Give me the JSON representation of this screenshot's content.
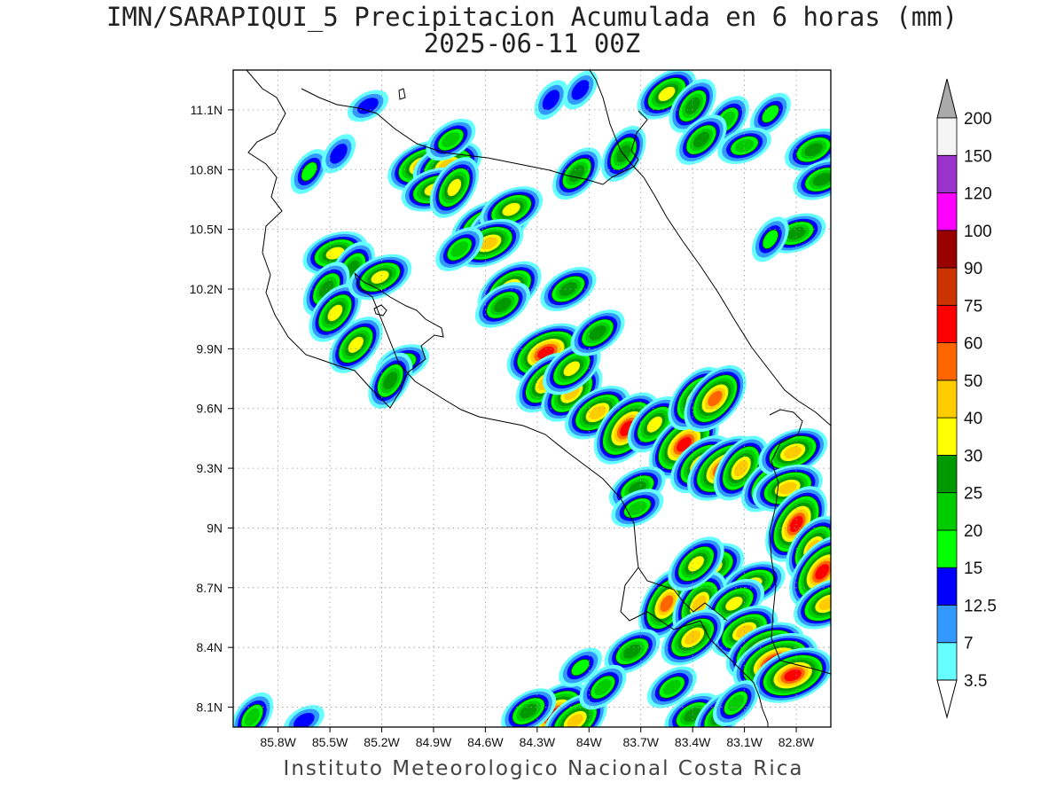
{
  "title": {
    "line1": "IMN/SARAPIQUI_5 Precipitacion Acumulada en 6 horas (mm)",
    "line2": "2025-06-11 00Z"
  },
  "credit": "Instituto Meteorologico Nacional Costa Rica",
  "map": {
    "lon_range": [
      -86.06,
      -82.6
    ],
    "lat_range": [
      8.0,
      11.3
    ],
    "lat_ticks": [
      "11.1N",
      "10.8N",
      "10.5N",
      "10.2N",
      "9.9N",
      "9.6N",
      "9.3N",
      "9N",
      "8.7N",
      "8.4N",
      "8.1N"
    ],
    "lon_ticks": [
      "85.8W",
      "85.5W",
      "85.2W",
      "84.9W",
      "84.6W",
      "84.3W",
      "84W",
      "83.7W",
      "83.4W",
      "83.1W",
      "82.8W"
    ],
    "grid": true
  },
  "colorbar": {
    "levels": [
      "3.5",
      "7",
      "12.5",
      "15",
      "20",
      "25",
      "30",
      "40",
      "50",
      "60",
      "75",
      "90",
      "100",
      "120",
      "150",
      "200"
    ],
    "colors": [
      "#66ffff",
      "#3399ff",
      "#0000ff",
      "#00ff00",
      "#00cc00",
      "#009900",
      "#ffff00",
      "#ffcc00",
      "#ff6600",
      "#ff0000",
      "#cc3300",
      "#990000",
      "#ff00ff",
      "#9933cc",
      "#f5f5f5",
      "#aaaaaa"
    ],
    "arrow_top_color": "#aaaaaa",
    "arrow_bottom_color": "#ffffff"
  },
  "rain_cells": [
    {
      "lon": -85.47,
      "lat": 10.38,
      "mm": 30
    },
    {
      "lon": -85.37,
      "lat": 10.3,
      "mm": 25
    },
    {
      "lon": -85.52,
      "lat": 10.2,
      "mm": 25
    },
    {
      "lon": -85.47,
      "lat": 10.08,
      "mm": 30
    },
    {
      "lon": -85.35,
      "lat": 9.92,
      "mm": 30
    },
    {
      "lon": -85.21,
      "lat": 10.26,
      "mm": 30
    },
    {
      "lon": -85.08,
      "lat": 9.83,
      "mm": 20
    },
    {
      "lon": -85.15,
      "lat": 9.74,
      "mm": 25
    },
    {
      "lon": -85.62,
      "lat": 10.79,
      "mm": 15
    },
    {
      "lon": -85.45,
      "lat": 10.88,
      "mm": 12.5
    },
    {
      "lon": -85.28,
      "lat": 11.12,
      "mm": 12.5
    },
    {
      "lon": -84.97,
      "lat": 10.82,
      "mm": 40
    },
    {
      "lon": -84.82,
      "lat": 10.82,
      "mm": 40
    },
    {
      "lon": -84.9,
      "lat": 10.7,
      "mm": 30
    },
    {
      "lon": -84.78,
      "lat": 10.71,
      "mm": 30
    },
    {
      "lon": -84.8,
      "lat": 10.95,
      "mm": 20
    },
    {
      "lon": -84.62,
      "lat": 10.52,
      "mm": 30
    },
    {
      "lon": -84.52,
      "lat": 10.52,
      "mm": 30
    },
    {
      "lon": -84.45,
      "lat": 10.6,
      "mm": 30
    },
    {
      "lon": -84.58,
      "lat": 10.43,
      "mm": 40
    },
    {
      "lon": -84.75,
      "lat": 10.4,
      "mm": 20
    },
    {
      "lon": -84.46,
      "lat": 10.2,
      "mm": 40
    },
    {
      "lon": -84.5,
      "lat": 10.12,
      "mm": 25
    },
    {
      "lon": -84.12,
      "lat": 10.2,
      "mm": 25
    },
    {
      "lon": -84.25,
      "lat": 9.88,
      "mm": 60
    },
    {
      "lon": -84.25,
      "lat": 9.73,
      "mm": 40
    },
    {
      "lon": -84.1,
      "lat": 9.68,
      "mm": 40
    },
    {
      "lon": -84.1,
      "lat": 9.8,
      "mm": 30
    },
    {
      "lon": -83.95,
      "lat": 9.98,
      "mm": 25
    },
    {
      "lon": -83.95,
      "lat": 9.58,
      "mm": 40
    },
    {
      "lon": -83.78,
      "lat": 9.5,
      "mm": 60
    },
    {
      "lon": -83.62,
      "lat": 9.52,
      "mm": 30
    },
    {
      "lon": -83.45,
      "lat": 9.42,
      "mm": 60
    },
    {
      "lon": -83.35,
      "lat": 9.32,
      "mm": 40
    },
    {
      "lon": -83.22,
      "lat": 9.3,
      "mm": 60
    },
    {
      "lon": -83.12,
      "lat": 9.3,
      "mm": 40
    },
    {
      "lon": -83.38,
      "lat": 9.65,
      "mm": 40
    },
    {
      "lon": -83.27,
      "lat": 9.65,
      "mm": 50
    },
    {
      "lon": -82.96,
      "lat": 9.22,
      "mm": 30
    },
    {
      "lon": -82.82,
      "lat": 9.38,
      "mm": 40
    },
    {
      "lon": -82.85,
      "lat": 9.2,
      "mm": 40
    },
    {
      "lon": -82.8,
      "lat": 9.02,
      "mm": 60
    },
    {
      "lon": -82.7,
      "lat": 8.9,
      "mm": 40
    },
    {
      "lon": -82.65,
      "lat": 8.78,
      "mm": 60
    },
    {
      "lon": -82.62,
      "lat": 8.62,
      "mm": 40
    },
    {
      "lon": -83.3,
      "lat": 8.8,
      "mm": 40
    },
    {
      "lon": -83.05,
      "lat": 8.72,
      "mm": 30
    },
    {
      "lon": -83.55,
      "lat": 8.62,
      "mm": 50
    },
    {
      "lon": -83.36,
      "lat": 8.62,
      "mm": 40
    },
    {
      "lon": -83.16,
      "lat": 8.62,
      "mm": 30
    },
    {
      "lon": -83.1,
      "lat": 8.48,
      "mm": 40
    },
    {
      "lon": -82.98,
      "lat": 8.38,
      "mm": 60
    },
    {
      "lon": -82.92,
      "lat": 8.32,
      "mm": 75
    },
    {
      "lon": -82.82,
      "lat": 8.26,
      "mm": 60
    },
    {
      "lon": -83.4,
      "lat": 8.45,
      "mm": 40
    },
    {
      "lon": -83.52,
      "lat": 8.2,
      "mm": 20
    },
    {
      "lon": -83.75,
      "lat": 8.38,
      "mm": 25
    },
    {
      "lon": -83.72,
      "lat": 9.2,
      "mm": 25
    },
    {
      "lon": -83.72,
      "lat": 9.1,
      "mm": 20
    },
    {
      "lon": -83.38,
      "lat": 8.82,
      "mm": 30
    },
    {
      "lon": -84.2,
      "lat": 8.06,
      "mm": 60
    },
    {
      "lon": -84.08,
      "lat": 8.03,
      "mm": 40
    },
    {
      "lon": -84.35,
      "lat": 8.08,
      "mm": 25
    },
    {
      "lon": -83.4,
      "lat": 8.06,
      "mm": 25
    },
    {
      "lon": -83.25,
      "lat": 8.05,
      "mm": 25
    },
    {
      "lon": -83.15,
      "lat": 8.12,
      "mm": 20
    },
    {
      "lon": -83.92,
      "lat": 8.2,
      "mm": 20
    },
    {
      "lon": -84.05,
      "lat": 8.3,
      "mm": 15
    },
    {
      "lon": -83.55,
      "lat": 11.18,
      "mm": 30
    },
    {
      "lon": -83.4,
      "lat": 11.12,
      "mm": 25
    },
    {
      "lon": -83.2,
      "lat": 11.05,
      "mm": 20
    },
    {
      "lon": -82.95,
      "lat": 11.08,
      "mm": 15
    },
    {
      "lon": -83.35,
      "lat": 10.95,
      "mm": 25
    },
    {
      "lon": -83.1,
      "lat": 10.92,
      "mm": 20
    },
    {
      "lon": -83.8,
      "lat": 10.88,
      "mm": 25
    },
    {
      "lon": -84.22,
      "lat": 11.15,
      "mm": 12.5
    },
    {
      "lon": -84.05,
      "lat": 11.2,
      "mm": 12.5
    },
    {
      "lon": -84.07,
      "lat": 10.78,
      "mm": 25
    },
    {
      "lon": -82.7,
      "lat": 10.9,
      "mm": 25
    },
    {
      "lon": -82.65,
      "lat": 10.75,
      "mm": 25
    },
    {
      "lon": -82.8,
      "lat": 10.48,
      "mm": 25
    },
    {
      "lon": -82.95,
      "lat": 10.45,
      "mm": 15
    },
    {
      "lon": -85.95,
      "lat": 8.05,
      "mm": 20
    },
    {
      "lon": -85.65,
      "lat": 8.03,
      "mm": 12.5
    }
  ]
}
